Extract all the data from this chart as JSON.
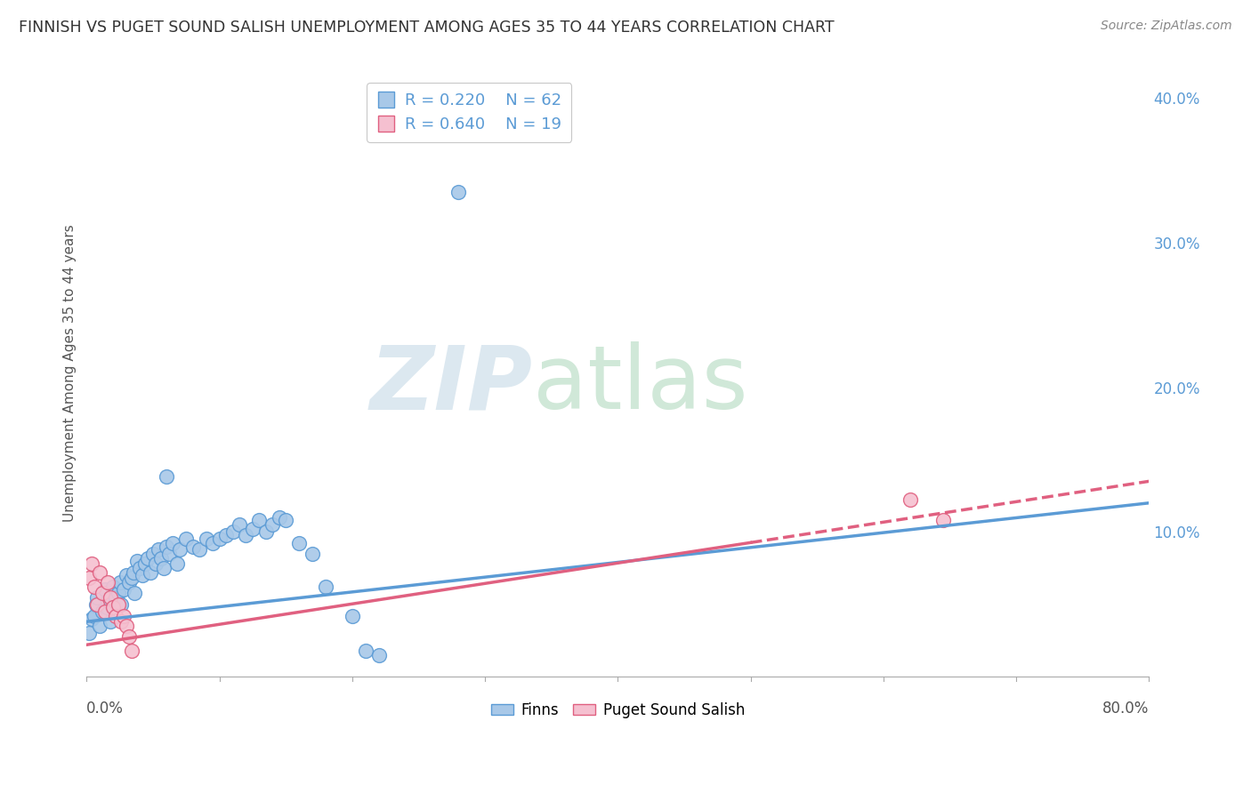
{
  "title": "FINNISH VS PUGET SOUND SALISH UNEMPLOYMENT AMONG AGES 35 TO 44 YEARS CORRELATION CHART",
  "source": "Source: ZipAtlas.com",
  "ylabel": "Unemployment Among Ages 35 to 44 years",
  "xlim": [
    0.0,
    0.8
  ],
  "ylim": [
    0.0,
    0.42
  ],
  "finns_color": "#a8c8e8",
  "finns_edge_color": "#5b9bd5",
  "salish_color": "#f5c0d0",
  "salish_edge_color": "#e06080",
  "finns_line_color": "#5b9bd5",
  "salish_line_color": "#e06080",
  "watermark_zip_color": "#dce8f0",
  "watermark_atlas_color": "#d0e8d8",
  "background_color": "#ffffff",
  "grid_color": "#d8d8d8",
  "title_color": "#333333",
  "right_tick_color": "#5b9bd5",
  "finns_points": [
    [
      0.002,
      0.03
    ],
    [
      0.004,
      0.04
    ],
    [
      0.006,
      0.042
    ],
    [
      0.007,
      0.05
    ],
    [
      0.008,
      0.055
    ],
    [
      0.01,
      0.035
    ],
    [
      0.012,
      0.045
    ],
    [
      0.014,
      0.06
    ],
    [
      0.015,
      0.048
    ],
    [
      0.016,
      0.052
    ],
    [
      0.018,
      0.038
    ],
    [
      0.02,
      0.062
    ],
    [
      0.022,
      0.055
    ],
    [
      0.024,
      0.058
    ],
    [
      0.025,
      0.065
    ],
    [
      0.026,
      0.05
    ],
    [
      0.028,
      0.06
    ],
    [
      0.03,
      0.07
    ],
    [
      0.032,
      0.065
    ],
    [
      0.034,
      0.068
    ],
    [
      0.035,
      0.072
    ],
    [
      0.036,
      0.058
    ],
    [
      0.038,
      0.08
    ],
    [
      0.04,
      0.075
    ],
    [
      0.042,
      0.07
    ],
    [
      0.044,
      0.078
    ],
    [
      0.046,
      0.082
    ],
    [
      0.048,
      0.072
    ],
    [
      0.05,
      0.085
    ],
    [
      0.052,
      0.078
    ],
    [
      0.054,
      0.088
    ],
    [
      0.056,
      0.082
    ],
    [
      0.058,
      0.075
    ],
    [
      0.06,
      0.09
    ],
    [
      0.062,
      0.085
    ],
    [
      0.065,
      0.092
    ],
    [
      0.068,
      0.078
    ],
    [
      0.07,
      0.088
    ],
    [
      0.075,
      0.095
    ],
    [
      0.08,
      0.09
    ],
    [
      0.085,
      0.088
    ],
    [
      0.09,
      0.095
    ],
    [
      0.095,
      0.092
    ],
    [
      0.1,
      0.095
    ],
    [
      0.105,
      0.098
    ],
    [
      0.11,
      0.1
    ],
    [
      0.115,
      0.105
    ],
    [
      0.12,
      0.098
    ],
    [
      0.125,
      0.102
    ],
    [
      0.13,
      0.108
    ],
    [
      0.135,
      0.1
    ],
    [
      0.14,
      0.105
    ],
    [
      0.145,
      0.11
    ],
    [
      0.15,
      0.108
    ],
    [
      0.16,
      0.092
    ],
    [
      0.17,
      0.085
    ],
    [
      0.18,
      0.062
    ],
    [
      0.2,
      0.042
    ],
    [
      0.21,
      0.018
    ],
    [
      0.22,
      0.015
    ],
    [
      0.28,
      0.335
    ],
    [
      0.06,
      0.138
    ]
  ],
  "salish_points": [
    [
      0.002,
      0.068
    ],
    [
      0.004,
      0.078
    ],
    [
      0.006,
      0.062
    ],
    [
      0.008,
      0.05
    ],
    [
      0.01,
      0.072
    ],
    [
      0.012,
      0.058
    ],
    [
      0.014,
      0.045
    ],
    [
      0.016,
      0.065
    ],
    [
      0.018,
      0.055
    ],
    [
      0.02,
      0.048
    ],
    [
      0.022,
      0.042
    ],
    [
      0.024,
      0.05
    ],
    [
      0.026,
      0.038
    ],
    [
      0.028,
      0.042
    ],
    [
      0.03,
      0.035
    ],
    [
      0.032,
      0.028
    ],
    [
      0.034,
      0.018
    ],
    [
      0.62,
      0.122
    ],
    [
      0.645,
      0.108
    ]
  ],
  "finns_line": {
    "x0": 0.0,
    "y0": 0.038,
    "x1": 0.8,
    "y1": 0.12
  },
  "salish_line": {
    "x0": 0.0,
    "y0": 0.022,
    "x1": 0.8,
    "y1": 0.135
  },
  "salish_dashed_line": {
    "x0": 0.45,
    "y0": 0.098,
    "x1": 0.8,
    "y1": 0.135
  }
}
